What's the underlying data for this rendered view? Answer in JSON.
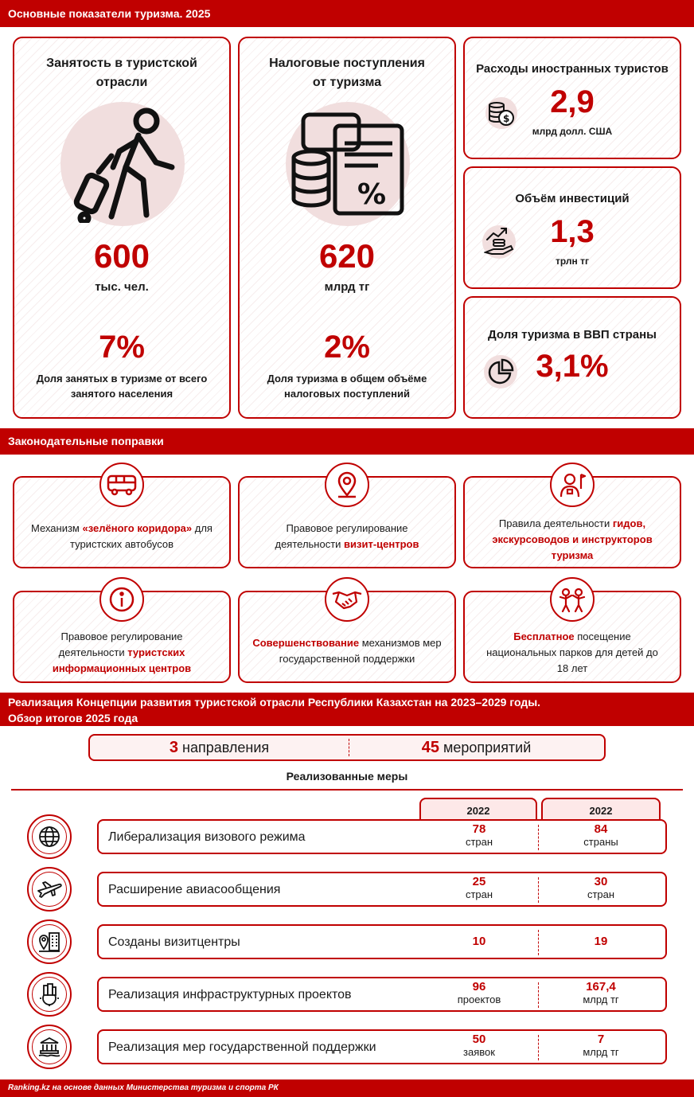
{
  "sections": {
    "indicators": "Основные показатели туризма. 2025",
    "amendments": "Законодательные поправки",
    "concept_line1": "Реализация Концепции развития туристской отрасли Республики Казахстан на 2023–2029 годы.",
    "concept_line2": "Обзор итогов 2025 года"
  },
  "employment": {
    "title_line1": "Занятость в туристской",
    "title_line2": "отрасли",
    "value": "600",
    "unit": "тыс. чел.",
    "share": "7%",
    "share_desc_line1": "Доля занятых в туризме от всего",
    "share_desc_line2": "занятого населения"
  },
  "tax": {
    "title_line1": "Налоговые поступления",
    "title_line2": "от туризма",
    "value": "620",
    "unit": "млрд тг",
    "share": "2%",
    "share_desc_line1": "Доля туризма в общем объёме",
    "share_desc_line2": "налоговых поступлений"
  },
  "foreign_spending": {
    "title": "Расходы иностранных туристов",
    "value": "2,9",
    "unit": "млрд долл. США"
  },
  "investment": {
    "title": "Объём инвестиций",
    "value": "1,3",
    "unit": "трлн тг"
  },
  "gdp_share": {
    "title": "Доля туризма в ВВП страны",
    "value": "3,1%"
  },
  "amend_cards": [
    {
      "icon": "bus-icon",
      "pre": "Механизм ",
      "hl": "«зелёного коридора»",
      "post": " для туристских автобусов"
    },
    {
      "icon": "location-pin-icon",
      "pre": "Правовое регулирование деятельности ",
      "hl": "визит-центров",
      "post": ""
    },
    {
      "icon": "guide-icon",
      "pre": "Правила деятельности ",
      "hl": "гидов, экскурсоводов и инструкторов туризма",
      "post": ""
    },
    {
      "icon": "info-icon",
      "pre": "Правовое регулирование деятельности ",
      "hl": "туристских информационных центров",
      "post": ""
    },
    {
      "icon": "handshake-icon",
      "pre": "",
      "hl": "Совершенствование",
      "post": " механизмов мер государственной поддержки"
    },
    {
      "icon": "children-icon",
      "pre": "",
      "hl": "Бесплатное",
      "post": " посещение национальных парков для детей до 18 лет"
    }
  ],
  "summary": {
    "directions_num": "3",
    "directions_label": "направления",
    "events_num": "45",
    "events_label": "мероприятий"
  },
  "measures_title": "Реализованные меры",
  "year_headers": [
    "2022",
    "2022"
  ],
  "measures": [
    {
      "icon": "globe-icon",
      "label": "Либерализация визового режима",
      "v1": "78",
      "u1": "стран",
      "v2": "84",
      "u2": "страны"
    },
    {
      "icon": "airplane-icon",
      "label": "Расширение авиасообщения",
      "v1": "25",
      "u1": "стран",
      "v2": "30",
      "u2": "стран"
    },
    {
      "icon": "map-building-icon",
      "label": "Созданы визитцентры",
      "v1": "10",
      "u1": "",
      "v2": "19",
      "u2": ""
    },
    {
      "icon": "infrastructure-icon",
      "label": "Реализация инфраструктурных проектов",
      "v1": "96",
      "u1": "проектов",
      "v2": "167,4",
      "u2": "млрд тг"
    },
    {
      "icon": "government-icon",
      "label": "Реализация мер государственной поддержки",
      "v1": "50",
      "u1": "заявок",
      "v2": "7",
      "u2": "млрд тг"
    }
  ],
  "footer": "Ranking.kz на основе данных Министерства туризма и спорта РК",
  "colors": {
    "accent": "#c00000",
    "circle": "#f1dede"
  }
}
